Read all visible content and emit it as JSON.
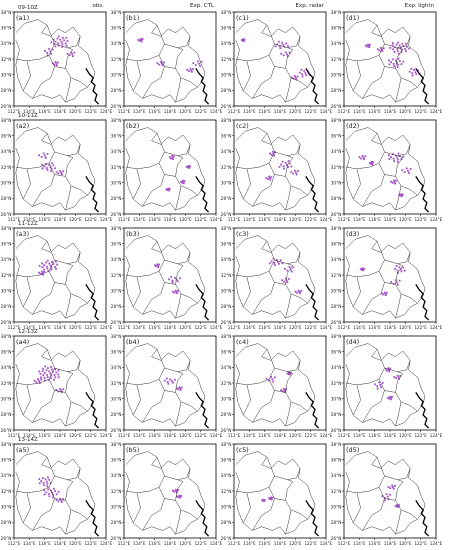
{
  "figure": {
    "column_headers": [
      "obs.",
      "Exp. CTL",
      "Exp. radar",
      "Exp. lightn"
    ],
    "row_time_labels": [
      "09-10Z",
      "10-11Z",
      "11-12Z",
      "12-13Z",
      "13-14Z"
    ],
    "lat_ticks": [
      "38°N",
      "36°N",
      "34°N",
      "32°N",
      "30°N",
      "28°N",
      "26°N"
    ],
    "lon_ticks": [
      "112°E",
      "114°E",
      "116°E",
      "118°E",
      "120°E",
      "122°E",
      "124°E"
    ],
    "colors": {
      "echo": "#a64fc9",
      "border": "#333333",
      "frame": "#000000"
    },
    "panels": [
      [
        {
          "label": "(a1)",
          "blobs": [
            [
              0.5,
              0.32,
              0.18,
              0.12
            ],
            [
              0.38,
              0.42,
              0.1,
              0.08
            ],
            [
              0.62,
              0.45,
              0.08,
              0.06
            ],
            [
              0.45,
              0.55,
              0.06,
              0.05
            ]
          ]
        },
        {
          "label": "(b1)",
          "blobs": [
            [
              0.18,
              0.3,
              0.05,
              0.04
            ],
            [
              0.4,
              0.55,
              0.08,
              0.05
            ],
            [
              0.8,
              0.55,
              0.1,
              0.07
            ],
            [
              0.72,
              0.62,
              0.07,
              0.05
            ]
          ]
        },
        {
          "label": "(c1)",
          "blobs": [
            [
              0.52,
              0.35,
              0.14,
              0.08
            ],
            [
              0.56,
              0.45,
              0.1,
              0.06
            ],
            [
              0.76,
              0.65,
              0.12,
              0.08
            ],
            [
              0.66,
              0.7,
              0.07,
              0.05
            ],
            [
              0.1,
              0.3,
              0.03,
              0.03
            ]
          ]
        },
        {
          "label": "(d1)",
          "blobs": [
            [
              0.6,
              0.38,
              0.2,
              0.12
            ],
            [
              0.56,
              0.54,
              0.16,
              0.1
            ],
            [
              0.76,
              0.64,
              0.12,
              0.08
            ],
            [
              0.4,
              0.4,
              0.07,
              0.05
            ],
            [
              0.26,
              0.36,
              0.05,
              0.04
            ]
          ]
        }
      ],
      [
        {
          "label": "(a2)",
          "blobs": [
            [
              0.32,
              0.38,
              0.1,
              0.07
            ],
            [
              0.38,
              0.5,
              0.16,
              0.09
            ],
            [
              0.5,
              0.56,
              0.08,
              0.05
            ]
          ]
        },
        {
          "label": "(b2)",
          "blobs": [
            [
              0.52,
              0.4,
              0.05,
              0.05
            ],
            [
              0.64,
              0.66,
              0.04,
              0.04
            ],
            [
              0.48,
              0.74,
              0.04,
              0.03
            ],
            [
              0.7,
              0.5,
              0.04,
              0.03
            ]
          ]
        },
        {
          "label": "(c2)",
          "blobs": [
            [
              0.42,
              0.36,
              0.06,
              0.06
            ],
            [
              0.56,
              0.48,
              0.14,
              0.09
            ],
            [
              0.66,
              0.56,
              0.08,
              0.06
            ],
            [
              0.38,
              0.62,
              0.06,
              0.05
            ]
          ]
        },
        {
          "label": "(d2)",
          "blobs": [
            [
              0.56,
              0.4,
              0.16,
              0.1
            ],
            [
              0.68,
              0.54,
              0.1,
              0.07
            ],
            [
              0.2,
              0.4,
              0.07,
              0.05
            ],
            [
              0.3,
              0.46,
              0.04,
              0.04
            ],
            [
              0.54,
              0.66,
              0.06,
              0.05
            ],
            [
              0.62,
              0.8,
              0.04,
              0.03
            ]
          ]
        }
      ],
      [
        {
          "label": "(a3)",
          "blobs": [
            [
              0.38,
              0.4,
              0.2,
              0.11
            ],
            [
              0.3,
              0.48,
              0.06,
              0.05
            ]
          ]
        },
        {
          "label": "(b3)",
          "blobs": [
            [
              0.36,
              0.4,
              0.05,
              0.04
            ],
            [
              0.55,
              0.55,
              0.15,
              0.06
            ],
            [
              0.56,
              0.68,
              0.06,
              0.04
            ]
          ]
        },
        {
          "label": "(c3)",
          "blobs": [
            [
              0.46,
              0.36,
              0.14,
              0.08
            ],
            [
              0.6,
              0.44,
              0.1,
              0.07
            ],
            [
              0.56,
              0.56,
              0.08,
              0.06
            ],
            [
              0.7,
              0.68,
              0.07,
              0.04
            ]
          ]
        },
        {
          "label": "(d3)",
          "blobs": [
            [
              0.6,
              0.44,
              0.12,
              0.08
            ],
            [
              0.56,
              0.58,
              0.1,
              0.07
            ],
            [
              0.44,
              0.7,
              0.06,
              0.04
            ],
            [
              0.2,
              0.44,
              0.04,
              0.03
            ]
          ]
        }
      ],
      [
        {
          "label": "(a4)",
          "blobs": [
            [
              0.38,
              0.4,
              0.22,
              0.15
            ],
            [
              0.26,
              0.48,
              0.08,
              0.06
            ],
            [
              0.5,
              0.58,
              0.08,
              0.05
            ]
          ]
        },
        {
          "label": "(b4)",
          "blobs": [
            [
              0.5,
              0.48,
              0.14,
              0.06
            ],
            [
              0.6,
              0.56,
              0.06,
              0.04
            ]
          ]
        },
        {
          "label": "(c4)",
          "blobs": [
            [
              0.4,
              0.46,
              0.1,
              0.07
            ],
            [
              0.54,
              0.58,
              0.06,
              0.05
            ],
            [
              0.6,
              0.4,
              0.04,
              0.03
            ]
          ]
        },
        {
          "label": "(d4)",
          "blobs": [
            [
              0.48,
              0.36,
              0.05,
              0.05
            ],
            [
              0.38,
              0.52,
              0.1,
              0.08
            ],
            [
              0.58,
              0.44,
              0.07,
              0.05
            ],
            [
              0.5,
              0.66,
              0.05,
              0.04
            ]
          ]
        }
      ],
      [
        {
          "label": "(a5)",
          "blobs": [
            [
              0.34,
              0.4,
              0.14,
              0.1
            ],
            [
              0.4,
              0.52,
              0.16,
              0.1
            ],
            [
              0.5,
              0.6,
              0.08,
              0.05
            ]
          ]
        },
        {
          "label": "(b5)",
          "blobs": [
            [
              0.56,
              0.5,
              0.06,
              0.04
            ],
            [
              0.6,
              0.56,
              0.05,
              0.03
            ]
          ]
        },
        {
          "label": "(c5)",
          "blobs": [
            [
              0.4,
              0.58,
              0.04,
              0.03
            ],
            [
              0.32,
              0.6,
              0.03,
              0.02
            ]
          ]
        },
        {
          "label": "(d5)",
          "blobs": [
            [
              0.52,
              0.46,
              0.08,
              0.05
            ],
            [
              0.46,
              0.56,
              0.1,
              0.08
            ],
            [
              0.58,
              0.66,
              0.04,
              0.03
            ]
          ]
        }
      ]
    ]
  }
}
